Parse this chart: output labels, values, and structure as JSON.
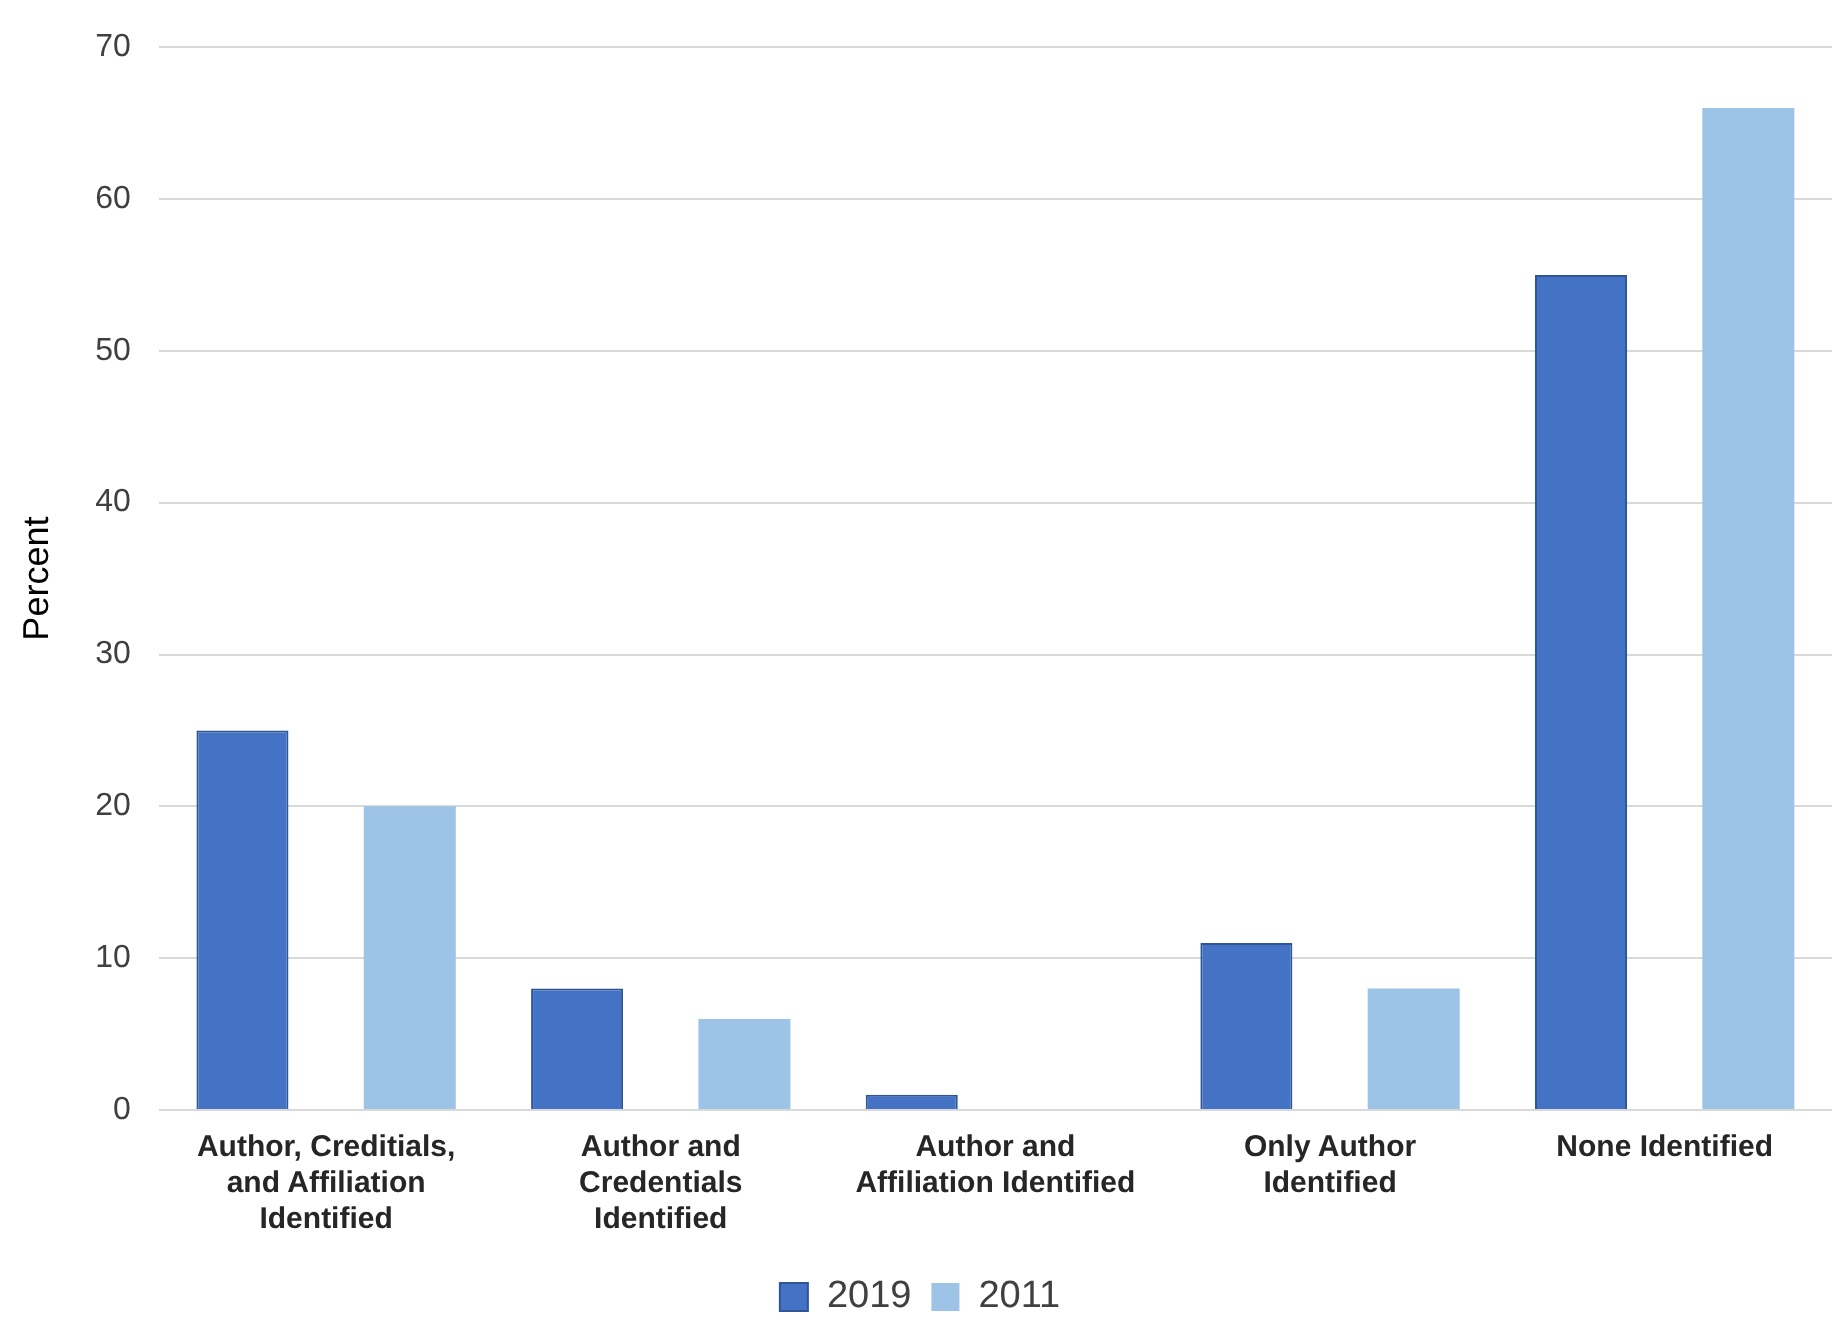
{
  "chart_data": {
    "type": "bar",
    "ylabel": "Percent",
    "categories": [
      "Author, Creditials, and Affiliation Identified",
      "Author and Credentials Identified",
      "Author and Affiliation Identified",
      "Only Author Identified",
      "None Identified"
    ],
    "series": [
      {
        "name": "2019",
        "color": "#4472c4",
        "values": [
          25,
          8,
          1,
          11,
          55
        ]
      },
      {
        "name": "2011",
        "color": "#9dc3e6",
        "values": [
          20,
          6,
          0,
          8,
          66
        ]
      }
    ],
    "ylim": [
      0,
      70
    ],
    "yticks": [
      0,
      10,
      20,
      30,
      40,
      50,
      60,
      70
    ],
    "grid": "y",
    "legend": "bottom"
  }
}
